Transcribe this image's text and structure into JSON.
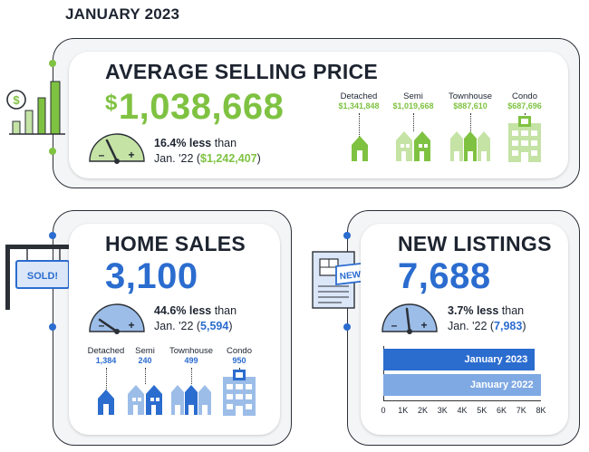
{
  "page": {
    "title": "JANUARY 2023"
  },
  "colors": {
    "green": "#7fc242",
    "light_green": "#c5e3a5",
    "blue": "#2b6ccf",
    "light_blue": "#9cbde8",
    "dark": "#1d2430"
  },
  "price": {
    "title": "AVERAGE SELLING PRICE",
    "currency": "$",
    "value": "1,038,668",
    "change_pct": "16.4% less",
    "change_word": "than",
    "prev_label": "Jan. '22 (",
    "prev_currency": "$",
    "prev_value": "1,242,407",
    "prev_close": ")",
    "gauge_minus": "–",
    "gauge_plus": "+",
    "types": [
      {
        "label": "Detached",
        "value": "$1,341,848"
      },
      {
        "label": "Semi",
        "value": "$1,019,668"
      },
      {
        "label": "Townhouse",
        "value": "$887,610"
      },
      {
        "label": "Condo",
        "value": "$687,696"
      }
    ]
  },
  "sales": {
    "title": "HOME SALES",
    "value": "3,100",
    "sign_text": "SOLD!",
    "change_pct": "44.6% less",
    "change_word": "than",
    "prev_label": "Jan. '22 (",
    "prev_value": "5,594",
    "prev_close": ")",
    "gauge_minus": "–",
    "gauge_plus": "+",
    "types": [
      {
        "label": "Detached",
        "value": "1,384"
      },
      {
        "label": "Semi",
        "value": "240"
      },
      {
        "label": "Townhouse",
        "value": "499"
      },
      {
        "label": "Condo",
        "value": "950"
      }
    ]
  },
  "listings": {
    "title": "NEW LISTINGS",
    "value": "7,688",
    "badge_text": "NEW!",
    "change_pct": "3.7% less",
    "change_word": "than",
    "prev_label": "Jan. '22 (",
    "prev_value": "7,983",
    "prev_close": ")",
    "gauge_minus": "–",
    "gauge_plus": "+"
  },
  "chart_data": {
    "type": "bar",
    "orientation": "horizontal",
    "categories": [
      "January 2023",
      "January 2022"
    ],
    "values": [
      7688,
      7983
    ],
    "xlim": [
      0,
      8000
    ],
    "ticks": [
      "0",
      "1K",
      "2K",
      "3K",
      "4K",
      "5K",
      "6K",
      "7K",
      "8K"
    ],
    "bar_colors": [
      "#2b6ccf",
      "#7fa9e3"
    ]
  }
}
